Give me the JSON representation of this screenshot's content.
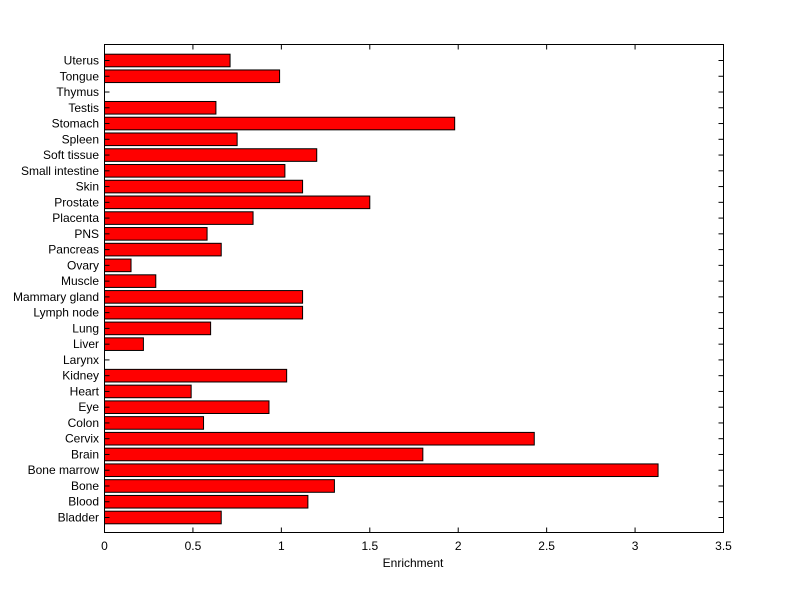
{
  "chart_data": {
    "type": "bar",
    "orientation": "horizontal",
    "title": "",
    "xlabel": "Enrichment",
    "ylabel": "",
    "xlim": [
      0,
      3.5
    ],
    "xticks": [
      0,
      0.5,
      1,
      1.5,
      2,
      2.5,
      3,
      3.5
    ],
    "xtick_labels": [
      "0",
      "0.5",
      "1",
      "1.5",
      "2",
      "2.5",
      "3",
      "3.5"
    ],
    "grid": false,
    "bar_color": "#ff0000",
    "bar_edge_color": "#000000",
    "categories": [
      "Bladder",
      "Blood",
      "Bone",
      "Bone marrow",
      "Brain",
      "Cervix",
      "Colon",
      "Eye",
      "Heart",
      "Kidney",
      "Larynx",
      "Liver",
      "Lung",
      "Lymph node",
      "Mammary gland",
      "Muscle",
      "Ovary",
      "Pancreas",
      "PNS",
      "Placenta",
      "Prostate",
      "Skin",
      "Small intestine",
      "Soft tissue",
      "Spleen",
      "Stomach",
      "Testis",
      "Thymus",
      "Tongue",
      "Uterus"
    ],
    "values": [
      0.66,
      1.15,
      1.3,
      3.13,
      1.8,
      2.43,
      0.56,
      0.93,
      0.49,
      1.03,
      0,
      0.22,
      0.6,
      1.12,
      1.12,
      0.29,
      0.15,
      0.66,
      0.58,
      0.84,
      1.5,
      1.12,
      1.02,
      1.2,
      0.75,
      1.98,
      0.63,
      0,
      0.99,
      0.71
    ]
  }
}
